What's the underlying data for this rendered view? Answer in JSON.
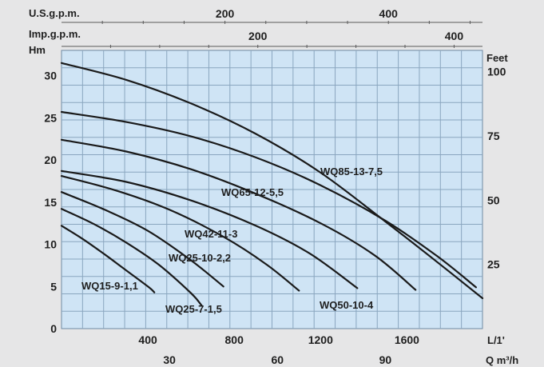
{
  "chart_data": {
    "type": "line",
    "title": "",
    "axes": {
      "x_primary": {
        "unit": "L/1'",
        "range": [
          0,
          1950
        ],
        "ticks": [
          "400",
          "800",
          "1200",
          "1600"
        ],
        "tick_values": [
          400,
          800,
          1200,
          1600
        ]
      },
      "x_m3h": {
        "unit": "Q m³/h",
        "ticks": [
          "30",
          "60",
          "90"
        ],
        "tick_values": [
          30,
          60,
          90
        ]
      },
      "x_usgpm": {
        "unit": "U.S.g.p.m.",
        "ticks": [
          "200",
          "400"
        ],
        "tick_values": [
          200,
          400
        ]
      },
      "x_impgpm": {
        "unit": "Imp.g.p.m.",
        "ticks": [
          "200",
          "400"
        ],
        "tick_values": [
          200,
          400
        ]
      },
      "y_left": {
        "unit": "Hm",
        "range": [
          0,
          33
        ],
        "ticks": [
          "0",
          "5",
          "10",
          "15",
          "20",
          "25",
          "30"
        ],
        "tick_values": [
          0,
          5,
          10,
          15,
          20,
          25,
          30
        ]
      },
      "y_right": {
        "unit": "Feet",
        "ticks": [
          "25",
          "50",
          "75",
          "100"
        ],
        "tick_values": [
          25,
          50,
          75,
          100
        ]
      }
    },
    "grid": true,
    "plot_background": "#cfe4f5",
    "grid_color": "#8aa6bf",
    "curve_color": "#1a1a1a",
    "series": [
      {
        "name": "WQ15-9-1,1",
        "x": [
          0,
          100,
          200,
          300,
          400,
          430
        ],
        "y": [
          12.2,
          10.6,
          8.8,
          6.9,
          5.0,
          4.3
        ]
      },
      {
        "name": "WQ25-7-1,5",
        "x": [
          0,
          150,
          300,
          450,
          600,
          650
        ],
        "y": [
          14.2,
          12.4,
          10.2,
          7.6,
          4.2,
          2.7
        ]
      },
      {
        "name": "WQ25-10-2,2",
        "x": [
          0,
          200,
          400,
          600,
          750
        ],
        "y": [
          16.2,
          14.1,
          11.6,
          8.1,
          5.0
        ]
      },
      {
        "name": "WQ42-11-3",
        "x": [
          0,
          250,
          500,
          750,
          950,
          1100
        ],
        "y": [
          18.1,
          16.4,
          14.1,
          10.9,
          7.6,
          4.5
        ]
      },
      {
        "name": "WQ50-10-4",
        "x": [
          0,
          300,
          600,
          900,
          1150,
          1370
        ],
        "y": [
          18.7,
          17.4,
          15.2,
          12.2,
          8.9,
          4.8
        ]
      },
      {
        "name": "WQ65-12-5,5",
        "x": [
          0,
          300,
          600,
          900,
          1200,
          1450,
          1640
        ],
        "y": [
          22.4,
          21.0,
          18.9,
          16.0,
          12.5,
          8.7,
          4.6
        ]
      },
      {
        "name": "WQ85-13-7,5",
        "x": [
          0,
          300,
          600,
          900,
          1200,
          1500,
          1740,
          1920
        ],
        "y": [
          25.7,
          24.5,
          22.8,
          20.3,
          17.0,
          12.8,
          8.6,
          4.9
        ]
      },
      {
        "name": "",
        "x": [
          0,
          300,
          600,
          900,
          1200,
          1500,
          1750,
          1950
        ],
        "y": [
          31.5,
          29.5,
          26.7,
          23.1,
          18.5,
          12.7,
          7.7,
          3.6
        ]
      }
    ],
    "annotations": [
      "WQ15-9-1,1",
      "WQ25-7-1,5",
      "WQ25-10-2,2",
      "WQ42-11-3",
      "WQ50-10-4",
      "WQ65-12-5,5",
      "WQ85-13-7,5"
    ]
  }
}
